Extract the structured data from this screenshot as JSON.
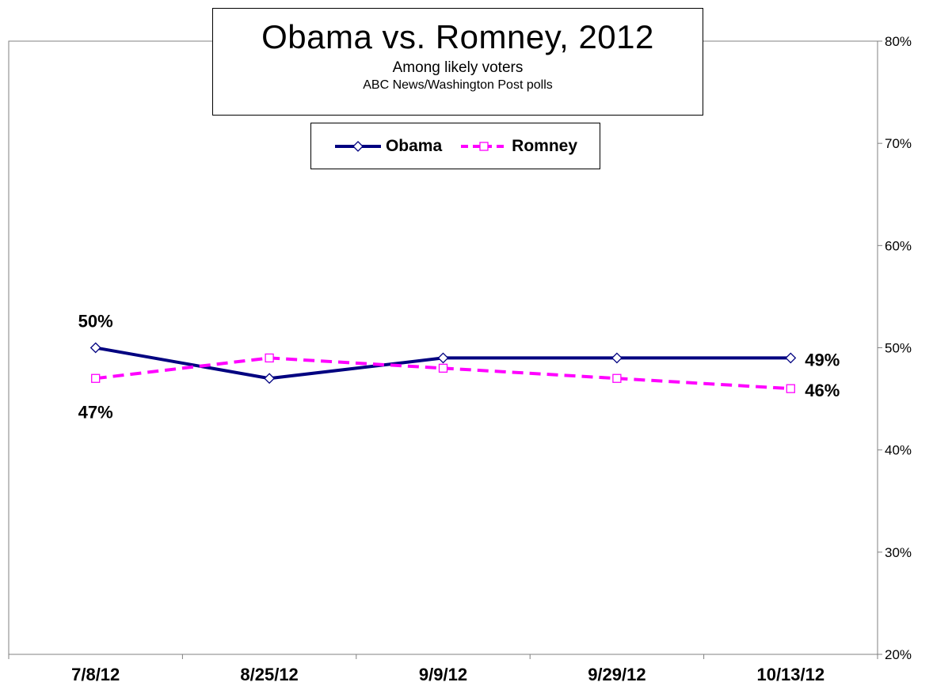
{
  "chart_data": {
    "type": "line",
    "title": "Obama vs. Romney, 2012",
    "subtitle": "Among likely voters",
    "source": "ABC News/Washington  Post polls",
    "categories": [
      "7/8/12",
      "8/25/12",
      "9/9/12",
      "9/29/12",
      "10/13/12"
    ],
    "series": [
      {
        "name": "Obama",
        "values": [
          50,
          47,
          49,
          49,
          49
        ],
        "color": "#000080",
        "style": "solid",
        "marker": "diamond"
      },
      {
        "name": "Romney",
        "values": [
          47,
          49,
          48,
          47,
          46
        ],
        "color": "#ff00ff",
        "style": "dashed",
        "marker": "square"
      }
    ],
    "data_labels": [
      {
        "series": 0,
        "index": 0,
        "text": "50%",
        "position": "above"
      },
      {
        "series": 1,
        "index": 0,
        "text": "47%",
        "position": "below"
      },
      {
        "series": 0,
        "index": 4,
        "text": "49%",
        "position": "right"
      },
      {
        "series": 1,
        "index": 4,
        "text": "46%",
        "position": "right"
      }
    ],
    "y_axis": {
      "side": "right",
      "min": 20,
      "max": 80,
      "step": 10,
      "tick_labels": [
        "20%",
        "30%",
        "40%",
        "50%",
        "60%",
        "70%",
        "80%"
      ]
    },
    "grid": false,
    "legend": "top-center"
  }
}
